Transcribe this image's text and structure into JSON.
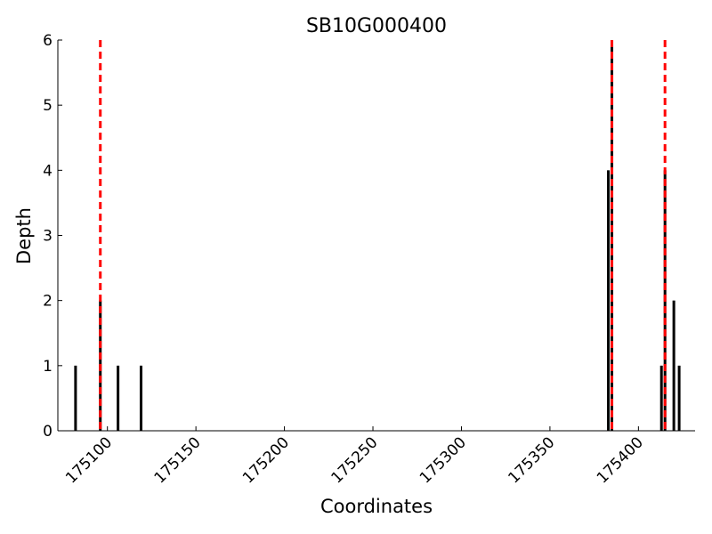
{
  "chart_data": {
    "type": "bar",
    "title": "SB10G000400",
    "x_label": "Coordinates",
    "y_label": "Depth",
    "x": [
      175082,
      175096,
      175106,
      175119,
      175383,
      175385,
      175413,
      175415,
      175420,
      175423
    ],
    "values": [
      1,
      2,
      1,
      1,
      4,
      6,
      1,
      4,
      2,
      1
    ],
    "color": "#000000",
    "vlines": [
      175096,
      175385,
      175415
    ],
    "vline_color": "#ff0000",
    "xlim": [
      175072,
      175432
    ],
    "xticks": [
      175100,
      175150,
      175200,
      175250,
      175300,
      175350,
      175400
    ],
    "ylim": [
      0,
      6
    ],
    "yticks": [
      0,
      1,
      2,
      3,
      4,
      5,
      6
    ]
  }
}
